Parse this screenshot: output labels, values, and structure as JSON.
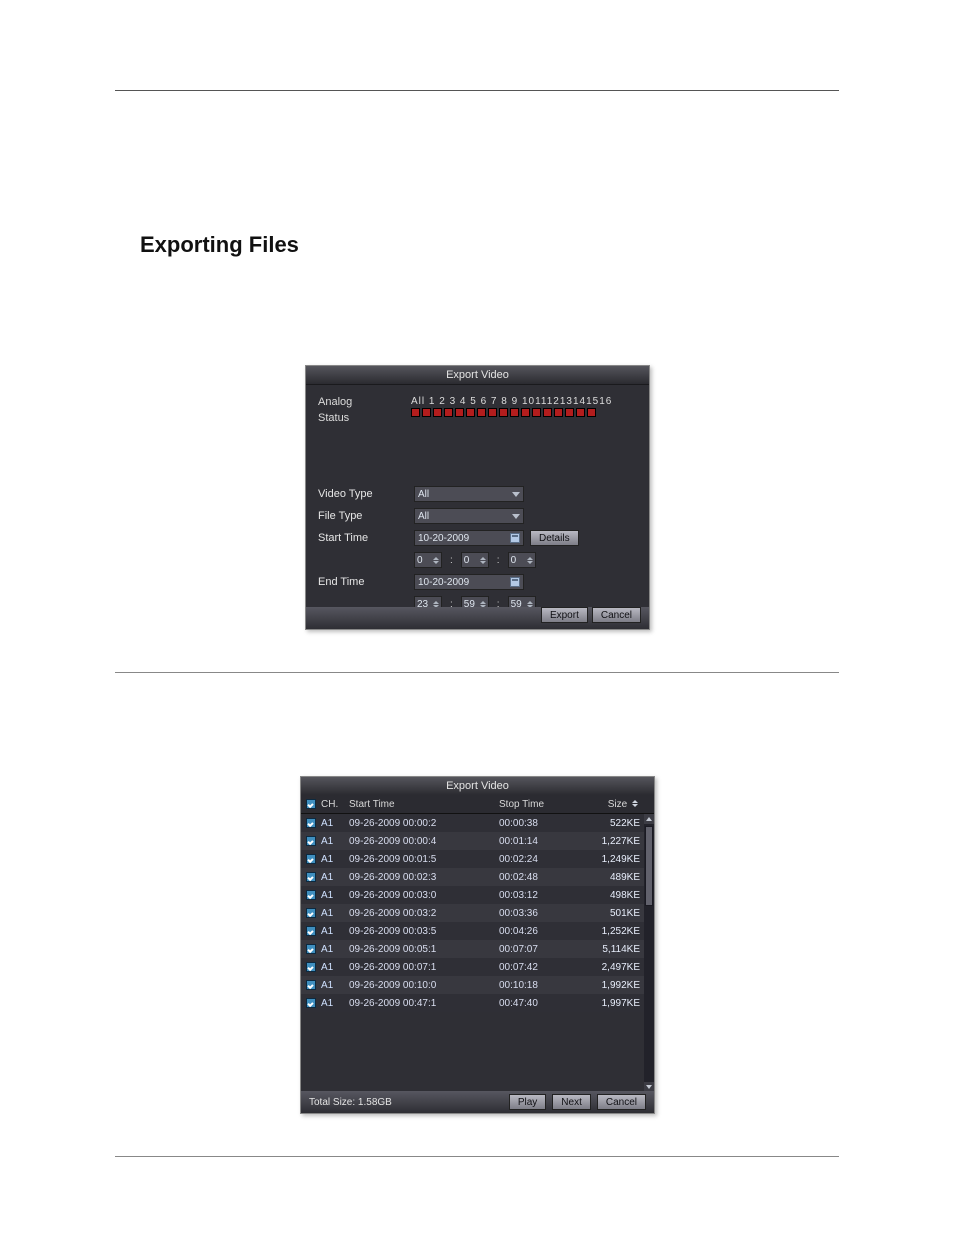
{
  "section_title": "Exporting Files",
  "rules": {
    "color": "#888888"
  },
  "dlg1": {
    "title": "Export Video",
    "labels": {
      "analog": "Analog",
      "status": "Status",
      "video_type": "Video Type",
      "file_type": "File Type",
      "start_time": "Start Time",
      "end_time": "End Time"
    },
    "channel_header": "All 1  2  3  4  5  6  7  8  9 10111213141516",
    "channel_boxes_count": 17,
    "video_type_value": "All",
    "file_type_value": "All",
    "start_date": "10-20-2009",
    "end_date": "10-20-2009",
    "start_h": "0",
    "start_m": "0",
    "start_s": "0",
    "end_h": "23",
    "end_m": "59",
    "end_s": "59",
    "buttons": {
      "details": "Details",
      "export": "Export",
      "cancel": "Cancel"
    },
    "colors": {
      "bg": "#2f2f35",
      "box_red": "#b31d1d",
      "text": "#dcdcdc",
      "input_bg": "#4c4c55"
    }
  },
  "dlg2": {
    "title": "Export Video",
    "headers": {
      "ch": "CH.",
      "start": "Start Time",
      "stop": "Stop Time",
      "size": "Size"
    },
    "rows": [
      {
        "ch": "A1",
        "start": "09-26-2009 00:00:2",
        "stop": "00:00:38",
        "size": "522KE"
      },
      {
        "ch": "A1",
        "start": "09-26-2009 00:00:4",
        "stop": "00:01:14",
        "size": "1,227KE"
      },
      {
        "ch": "A1",
        "start": "09-26-2009 00:01:5",
        "stop": "00:02:24",
        "size": "1,249KE"
      },
      {
        "ch": "A1",
        "start": "09-26-2009 00:02:3",
        "stop": "00:02:48",
        "size": "489KE"
      },
      {
        "ch": "A1",
        "start": "09-26-2009 00:03:0",
        "stop": "00:03:12",
        "size": "498KE"
      },
      {
        "ch": "A1",
        "start": "09-26-2009 00:03:2",
        "stop": "00:03:36",
        "size": "501KE"
      },
      {
        "ch": "A1",
        "start": "09-26-2009 00:03:5",
        "stop": "00:04:26",
        "size": "1,252KE"
      },
      {
        "ch": "A1",
        "start": "09-26-2009 00:05:1",
        "stop": "00:07:07",
        "size": "5,114KE"
      },
      {
        "ch": "A1",
        "start": "09-26-2009 00:07:1",
        "stop": "00:07:42",
        "size": "2,497KE"
      },
      {
        "ch": "A1",
        "start": "09-26-2009 00:10:0",
        "stop": "00:10:18",
        "size": "1,992KE"
      },
      {
        "ch": "A1",
        "start": "09-26-2009 00:47:1",
        "stop": "00:47:40",
        "size": "1,997KE"
      }
    ],
    "footer": {
      "total_label": "Total Size: 1.58GB",
      "play": "Play",
      "next": "Next",
      "cancel": "Cancel"
    },
    "colors": {
      "row_even": "#2f2f36",
      "row_odd": "#38383f",
      "check_bg": "#3f8fbf"
    }
  }
}
